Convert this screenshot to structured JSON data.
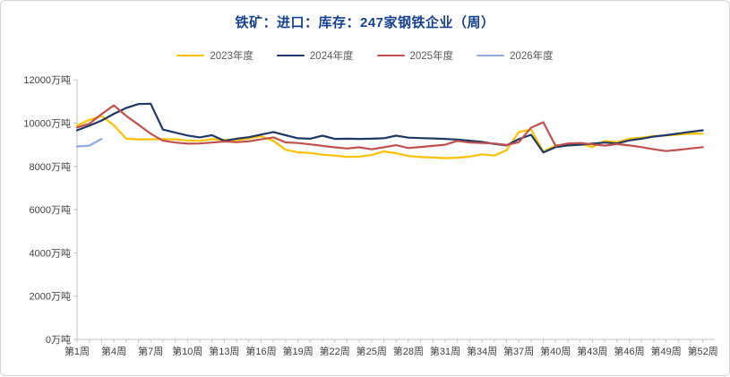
{
  "title": "铁矿：进口：库存：247家钢铁企业（周）",
  "colors": {
    "title": "#16418C",
    "axis_line": "#C2C2C2",
    "tick_label": "#3F3F3F",
    "legend_label": "#595959",
    "card_border": "#D4D4D4",
    "background": "#FFFFFF"
  },
  "chart_data": {
    "type": "line",
    "title": "铁矿：进口：库存：247家钢铁企业（周）",
    "unit": "万吨",
    "legend_position": "top",
    "gridlines": false,
    "y_axis": {
      "min": 0,
      "max": 12000,
      "step": 2000
    },
    "x_axis": {
      "min_week": 1,
      "max_week": 52,
      "label_step": 3
    },
    "y_tick_labels": [
      "0万吨",
      "2000万吨",
      "4000万吨",
      "6000万吨",
      "8000万吨",
      "10000万吨",
      "12000万吨"
    ],
    "x_tick_labels": [
      "第1周",
      "第4周",
      "第7周",
      "第10周",
      "第13周",
      "第16周",
      "第19周",
      "第22周",
      "第25周",
      "第28周",
      "第31周",
      "第34周",
      "第37周",
      "第40周",
      "第43周",
      "第46周",
      "第49周",
      "第52周"
    ],
    "series": [
      {
        "name": "2023年度",
        "color": "#FFC000",
        "start_week": 1,
        "values": [
          9880,
          10150,
          10330,
          9900,
          9280,
          9250,
          9250,
          9260,
          9250,
          9200,
          9180,
          9260,
          9230,
          9210,
          9290,
          9400,
          9180,
          8770,
          8650,
          8620,
          8540,
          8500,
          8440,
          8450,
          8520,
          8690,
          8610,
          8480,
          8430,
          8410,
          8380,
          8400,
          8450,
          8560,
          8500,
          8750,
          9590,
          9710,
          8680,
          8970,
          9010,
          9060,
          8890,
          9170,
          9120,
          9280,
          9330,
          9400,
          9430,
          9470,
          9520,
          9510
        ]
      },
      {
        "name": "2024年度",
        "color": "#1F3864",
        "start_week": 1,
        "values": [
          9670,
          9880,
          10120,
          10430,
          10700,
          10880,
          10900,
          9700,
          9560,
          9430,
          9340,
          9440,
          9180,
          9280,
          9350,
          9470,
          9590,
          9440,
          9300,
          9280,
          9420,
          9270,
          9280,
          9270,
          9280,
          9300,
          9420,
          9330,
          9310,
          9290,
          9270,
          9240,
          9190,
          9130,
          9040,
          8970,
          9260,
          9460,
          8640,
          8890,
          8970,
          9000,
          9050,
          9100,
          9060,
          9200,
          9280,
          9380,
          9440,
          9520,
          9600,
          9670
        ]
      },
      {
        "name": "2025年度",
        "color": "#C0504D",
        "start_week": 1,
        "values": [
          9800,
          9970,
          10420,
          10820,
          10340,
          9930,
          9510,
          9190,
          9100,
          9050,
          9060,
          9100,
          9150,
          9120,
          9160,
          9250,
          9340,
          9110,
          9080,
          9020,
          8950,
          8880,
          8830,
          8880,
          8790,
          8880,
          8980,
          8850,
          8900,
          8950,
          9000,
          9180,
          9100,
          9080,
          9060,
          8990,
          9120,
          9790,
          10040,
          8950,
          9060,
          9080,
          9020,
          8960,
          9030,
          8970,
          8890,
          8790,
          8710,
          8760,
          8830,
          8890
        ]
      },
      {
        "name": "2026年度",
        "color": "#8FAADC",
        "start_week": 1,
        "values": [
          8920,
          8960,
          9270
        ]
      }
    ]
  }
}
